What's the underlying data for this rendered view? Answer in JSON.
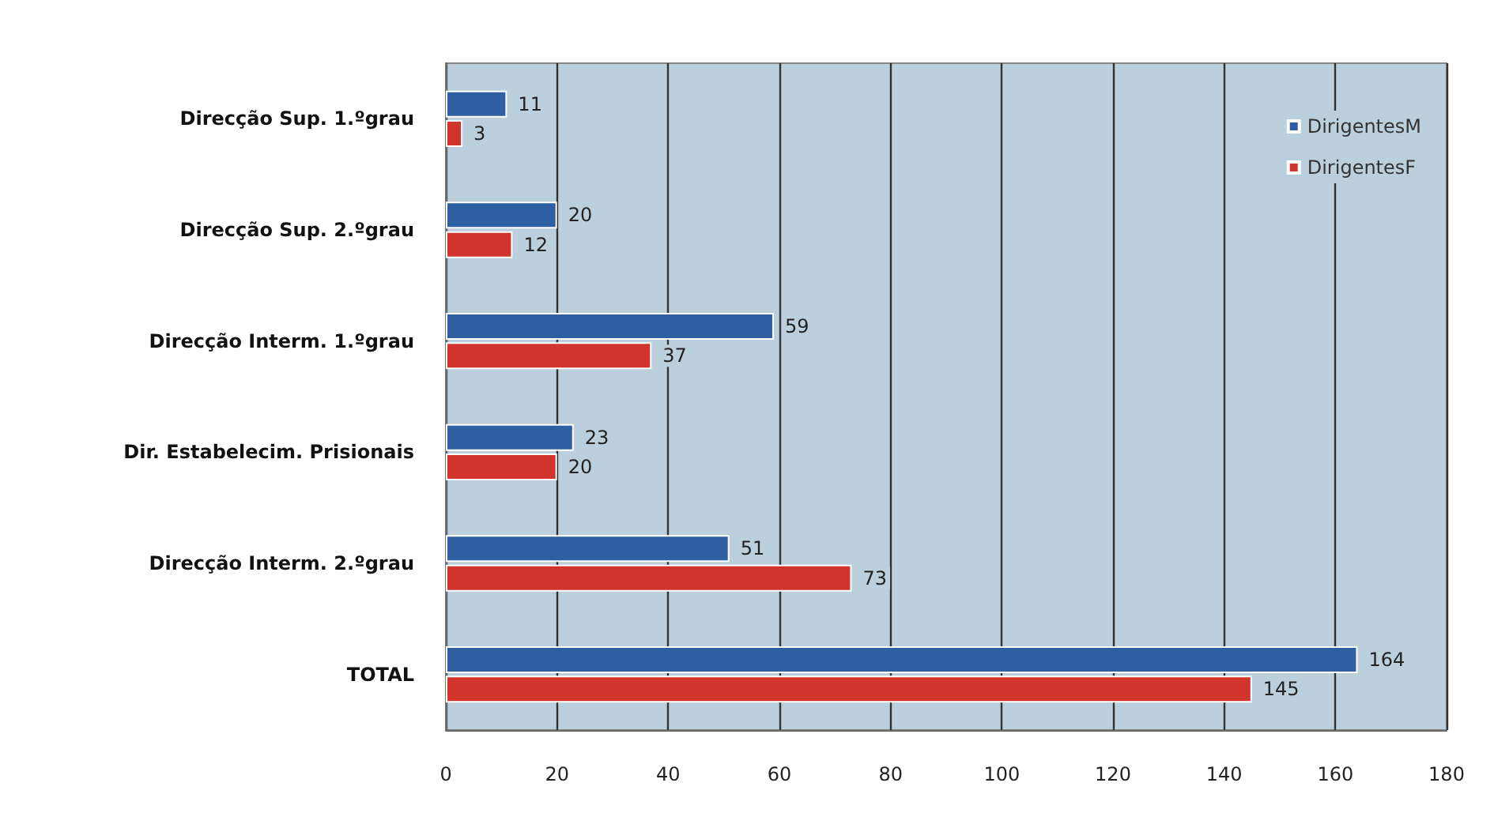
{
  "chart_data": {
    "type": "bar",
    "orientation": "horizontal",
    "categories": [
      "Direcção Sup. 1.ºgrau",
      "Direcção Sup. 2.ºgrau",
      "Direcção Interm. 1.ºgrau",
      "Dir. Estabelecim. Prisionais",
      "Direcção Interm. 2.ºgrau",
      "TOTAL"
    ],
    "series": [
      {
        "name": "DirigentesM",
        "color": "#2e5fa3",
        "values": [
          11,
          20,
          59,
          23,
          51,
          164
        ]
      },
      {
        "name": "DirigentesF",
        "color": "#d0342c",
        "values": [
          3,
          12,
          37,
          20,
          73,
          145
        ]
      }
    ],
    "xlim": [
      0,
      180
    ],
    "xticks": [
      0,
      20,
      40,
      60,
      80,
      100,
      120,
      140,
      160,
      180
    ],
    "grid": "x",
    "legend": "top right",
    "data_labels": true
  }
}
